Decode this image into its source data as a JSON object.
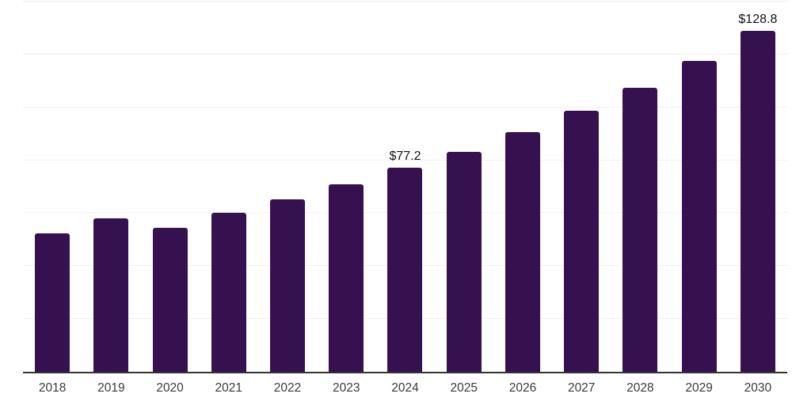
{
  "chart_data": {
    "type": "bar",
    "title": "",
    "xlabel": "",
    "ylabel": "",
    "categories": [
      "2018",
      "2019",
      "2020",
      "2021",
      "2022",
      "2023",
      "2024",
      "2025",
      "2026",
      "2027",
      "2028",
      "2029",
      "2030"
    ],
    "values": [
      52.4,
      58.1,
      54.5,
      60.1,
      65.3,
      70.8,
      77.2,
      83.3,
      90.6,
      98.6,
      107.4,
      117.6,
      128.8
    ],
    "data_labels": [
      "",
      "",
      "",
      "",
      "",
      "",
      "$77.2",
      "",
      "",
      "",
      "",
      "",
      "$128.8"
    ],
    "ylim": [
      0,
      140
    ],
    "gridline_step": 20,
    "grid": "horizontal",
    "legend": "none",
    "y_axis_labels_visible": false,
    "colors": {
      "bar": "#36114F",
      "background": "#FFFFFF",
      "gridline": "#F0F0F0",
      "axis_line": "#333333",
      "data_label_text": "#111111",
      "tick_label_text": "#3A3A3A"
    }
  }
}
